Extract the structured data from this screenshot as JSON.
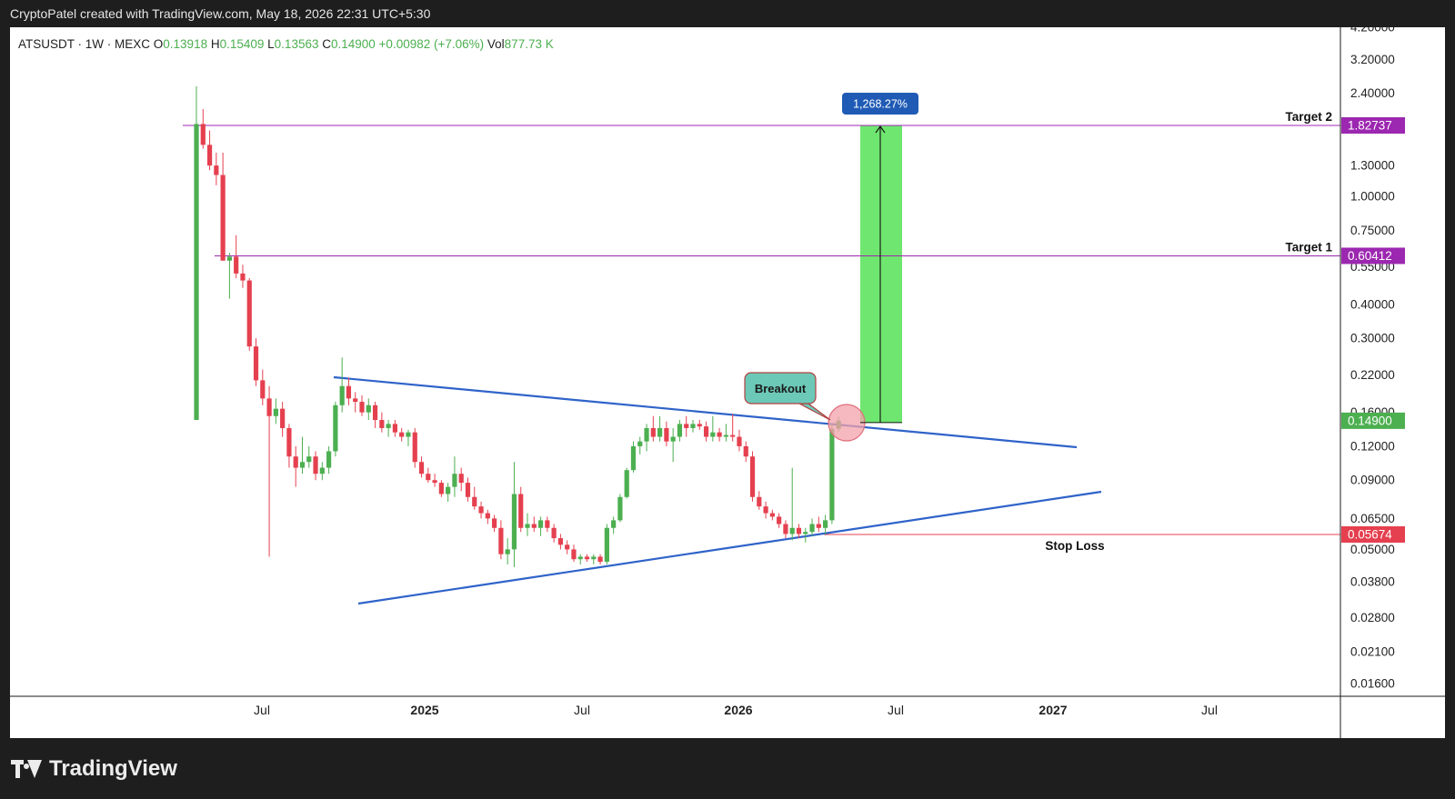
{
  "header": {
    "attribution": "CryptoPatel created with TradingView.com, May 18, 2026 22:31 UTC+5:30"
  },
  "brand": {
    "name": "TradingView"
  },
  "colors": {
    "up": "#4caf50",
    "down": "#e5404f",
    "trendline": "#2f63c9",
    "target_line": "#9c27b0",
    "stop_line": "#e5404f",
    "target_zone": "#5fe35f",
    "percent_badge": "#1f5bb5",
    "breakout_bubble": "#6cc9b7",
    "breakout_circle": "#f3a2ab"
  },
  "chart_data": {
    "type": "candlestick",
    "symbol": "ATSUSDT",
    "timeframe": "1W",
    "exchange": "MEXC",
    "ohlc_legend": {
      "open_label": "O",
      "open": "0.13918",
      "high_label": "H",
      "high": "0.15409",
      "low_label": "L",
      "low": "0.13563",
      "close_label": "C",
      "close": "0.14900",
      "change": "+0.00982 (+7.06%)",
      "volume_label": "Vol",
      "volume": "877.73 K"
    },
    "y_scale": "log",
    "y_ticks": [
      "4.20000",
      "3.20000",
      "2.40000",
      "1.30000",
      "1.00000",
      "0.75000",
      "0.55000",
      "0.40000",
      "0.30000",
      "0.22000",
      "0.16000",
      "0.12000",
      "0.09000",
      "0.06500",
      "0.05000",
      "0.03800",
      "0.02800",
      "0.02100",
      "0.01600"
    ],
    "x_ticks": [
      {
        "label": "Jul",
        "bold": false
      },
      {
        "label": "2025",
        "bold": true
      },
      {
        "label": "Jul",
        "bold": false
      },
      {
        "label": "2026",
        "bold": true
      },
      {
        "label": "Jul",
        "bold": false
      },
      {
        "label": "2027",
        "bold": true
      },
      {
        "label": "Jul",
        "bold": false
      }
    ],
    "price_badges": [
      {
        "label": "1.82737",
        "value": 1.82737,
        "color": "#9c27b0"
      },
      {
        "label": "0.60412",
        "value": 0.60412,
        "color": "#9c27b0"
      },
      {
        "label": "0.14900",
        "value": 0.149,
        "color": "#4caf50"
      },
      {
        "label": "0.05674",
        "value": 0.05674,
        "color": "#e5404f"
      }
    ],
    "levels": [
      {
        "label": "Target 2",
        "value": 1.82737
      },
      {
        "label": "Target 1",
        "value": 0.60412
      },
      {
        "label": "Stop Loss",
        "value": 0.05674
      }
    ],
    "annotations": {
      "breakout": "Breakout",
      "gain_percent": "1,268.27%"
    },
    "candles": [
      {
        "o": 0.15,
        "h": 2.55,
        "l": 0.15,
        "c": 1.85
      },
      {
        "o": 1.85,
        "h": 2.1,
        "l": 1.5,
        "c": 1.55
      },
      {
        "o": 1.55,
        "h": 1.75,
        "l": 1.25,
        "c": 1.3
      },
      {
        "o": 1.3,
        "h": 1.45,
        "l": 1.1,
        "c": 1.2
      },
      {
        "o": 1.2,
        "h": 1.45,
        "l": 0.58,
        "c": 0.58
      },
      {
        "o": 0.58,
        "h": 0.62,
        "l": 0.42,
        "c": 0.6
      },
      {
        "o": 0.6,
        "h": 0.72,
        "l": 0.5,
        "c": 0.52
      },
      {
        "o": 0.52,
        "h": 0.56,
        "l": 0.46,
        "c": 0.49
      },
      {
        "o": 0.49,
        "h": 0.5,
        "l": 0.27,
        "c": 0.28
      },
      {
        "o": 0.28,
        "h": 0.3,
        "l": 0.2,
        "c": 0.21
      },
      {
        "o": 0.21,
        "h": 0.23,
        "l": 0.17,
        "c": 0.18
      },
      {
        "o": 0.18,
        "h": 0.2,
        "l": 0.047,
        "c": 0.155
      },
      {
        "o": 0.155,
        "h": 0.18,
        "l": 0.145,
        "c": 0.165
      },
      {
        "o": 0.165,
        "h": 0.175,
        "l": 0.13,
        "c": 0.14
      },
      {
        "o": 0.14,
        "h": 0.145,
        "l": 0.1,
        "c": 0.11
      },
      {
        "o": 0.11,
        "h": 0.12,
        "l": 0.085,
        "c": 0.1
      },
      {
        "o": 0.1,
        "h": 0.13,
        "l": 0.095,
        "c": 0.105
      },
      {
        "o": 0.105,
        "h": 0.12,
        "l": 0.1,
        "c": 0.11
      },
      {
        "o": 0.11,
        "h": 0.115,
        "l": 0.09,
        "c": 0.095
      },
      {
        "o": 0.095,
        "h": 0.105,
        "l": 0.09,
        "c": 0.1
      },
      {
        "o": 0.1,
        "h": 0.12,
        "l": 0.095,
        "c": 0.115
      },
      {
        "o": 0.115,
        "h": 0.175,
        "l": 0.11,
        "c": 0.17
      },
      {
        "o": 0.17,
        "h": 0.255,
        "l": 0.16,
        "c": 0.2
      },
      {
        "o": 0.2,
        "h": 0.215,
        "l": 0.17,
        "c": 0.18
      },
      {
        "o": 0.18,
        "h": 0.19,
        "l": 0.16,
        "c": 0.175
      },
      {
        "o": 0.175,
        "h": 0.185,
        "l": 0.155,
        "c": 0.16
      },
      {
        "o": 0.16,
        "h": 0.18,
        "l": 0.15,
        "c": 0.17
      },
      {
        "o": 0.17,
        "h": 0.175,
        "l": 0.14,
        "c": 0.15
      },
      {
        "o": 0.15,
        "h": 0.16,
        "l": 0.135,
        "c": 0.14
      },
      {
        "o": 0.14,
        "h": 0.15,
        "l": 0.13,
        "c": 0.145
      },
      {
        "o": 0.145,
        "h": 0.15,
        "l": 0.13,
        "c": 0.135
      },
      {
        "o": 0.135,
        "h": 0.14,
        "l": 0.125,
        "c": 0.13
      },
      {
        "o": 0.13,
        "h": 0.138,
        "l": 0.12,
        "c": 0.135
      },
      {
        "o": 0.135,
        "h": 0.14,
        "l": 0.1,
        "c": 0.105
      },
      {
        "o": 0.105,
        "h": 0.11,
        "l": 0.092,
        "c": 0.095
      },
      {
        "o": 0.095,
        "h": 0.1,
        "l": 0.088,
        "c": 0.09
      },
      {
        "o": 0.09,
        "h": 0.095,
        "l": 0.085,
        "c": 0.088
      },
      {
        "o": 0.088,
        "h": 0.09,
        "l": 0.078,
        "c": 0.08
      },
      {
        "o": 0.08,
        "h": 0.088,
        "l": 0.075,
        "c": 0.085
      },
      {
        "o": 0.085,
        "h": 0.11,
        "l": 0.078,
        "c": 0.095
      },
      {
        "o": 0.095,
        "h": 0.1,
        "l": 0.082,
        "c": 0.088
      },
      {
        "o": 0.088,
        "h": 0.092,
        "l": 0.075,
        "c": 0.078
      },
      {
        "o": 0.078,
        "h": 0.085,
        "l": 0.07,
        "c": 0.072
      },
      {
        "o": 0.072,
        "h": 0.075,
        "l": 0.065,
        "c": 0.068
      },
      {
        "o": 0.068,
        "h": 0.07,
        "l": 0.062,
        "c": 0.065
      },
      {
        "o": 0.065,
        "h": 0.067,
        "l": 0.058,
        "c": 0.06
      },
      {
        "o": 0.06,
        "h": 0.064,
        "l": 0.046,
        "c": 0.048
      },
      {
        "o": 0.048,
        "h": 0.055,
        "l": 0.044,
        "c": 0.05
      },
      {
        "o": 0.05,
        "h": 0.105,
        "l": 0.043,
        "c": 0.08
      },
      {
        "o": 0.08,
        "h": 0.085,
        "l": 0.058,
        "c": 0.06
      },
      {
        "o": 0.06,
        "h": 0.068,
        "l": 0.056,
        "c": 0.062
      },
      {
        "o": 0.062,
        "h": 0.066,
        "l": 0.058,
        "c": 0.06
      },
      {
        "o": 0.06,
        "h": 0.066,
        "l": 0.056,
        "c": 0.064
      },
      {
        "o": 0.064,
        "h": 0.066,
        "l": 0.058,
        "c": 0.06
      },
      {
        "o": 0.06,
        "h": 0.062,
        "l": 0.053,
        "c": 0.055
      },
      {
        "o": 0.055,
        "h": 0.057,
        "l": 0.05,
        "c": 0.052
      },
      {
        "o": 0.052,
        "h": 0.054,
        "l": 0.048,
        "c": 0.05
      },
      {
        "o": 0.05,
        "h": 0.052,
        "l": 0.045,
        "c": 0.046
      },
      {
        "o": 0.046,
        "h": 0.048,
        "l": 0.044,
        "c": 0.047
      },
      {
        "o": 0.047,
        "h": 0.048,
        "l": 0.045,
        "c": 0.046
      },
      {
        "o": 0.046,
        "h": 0.048,
        "l": 0.044,
        "c": 0.047
      },
      {
        "o": 0.047,
        "h": 0.048,
        "l": 0.044,
        "c": 0.045
      },
      {
        "o": 0.045,
        "h": 0.062,
        "l": 0.044,
        "c": 0.06
      },
      {
        "o": 0.06,
        "h": 0.066,
        "l": 0.057,
        "c": 0.064
      },
      {
        "o": 0.064,
        "h": 0.08,
        "l": 0.063,
        "c": 0.078
      },
      {
        "o": 0.078,
        "h": 0.1,
        "l": 0.077,
        "c": 0.098
      },
      {
        "o": 0.098,
        "h": 0.125,
        "l": 0.096,
        "c": 0.12
      },
      {
        "o": 0.12,
        "h": 0.13,
        "l": 0.112,
        "c": 0.125
      },
      {
        "o": 0.125,
        "h": 0.145,
        "l": 0.115,
        "c": 0.14
      },
      {
        "o": 0.14,
        "h": 0.155,
        "l": 0.125,
        "c": 0.13
      },
      {
        "o": 0.13,
        "h": 0.155,
        "l": 0.125,
        "c": 0.14
      },
      {
        "o": 0.14,
        "h": 0.148,
        "l": 0.12,
        "c": 0.125
      },
      {
        "o": 0.125,
        "h": 0.14,
        "l": 0.105,
        "c": 0.13
      },
      {
        "o": 0.13,
        "h": 0.15,
        "l": 0.125,
        "c": 0.145
      },
      {
        "o": 0.145,
        "h": 0.155,
        "l": 0.13,
        "c": 0.14
      },
      {
        "o": 0.14,
        "h": 0.15,
        "l": 0.135,
        "c": 0.145
      },
      {
        "o": 0.145,
        "h": 0.15,
        "l": 0.138,
        "c": 0.142
      },
      {
        "o": 0.142,
        "h": 0.148,
        "l": 0.125,
        "c": 0.13
      },
      {
        "o": 0.13,
        "h": 0.155,
        "l": 0.125,
        "c": 0.135
      },
      {
        "o": 0.135,
        "h": 0.14,
        "l": 0.125,
        "c": 0.13
      },
      {
        "o": 0.13,
        "h": 0.145,
        "l": 0.125,
        "c": 0.132
      },
      {
        "o": 0.132,
        "h": 0.158,
        "l": 0.125,
        "c": 0.13
      },
      {
        "o": 0.13,
        "h": 0.138,
        "l": 0.115,
        "c": 0.12
      },
      {
        "o": 0.12,
        "h": 0.125,
        "l": 0.105,
        "c": 0.11
      },
      {
        "o": 0.11,
        "h": 0.115,
        "l": 0.075,
        "c": 0.078
      },
      {
        "o": 0.078,
        "h": 0.082,
        "l": 0.07,
        "c": 0.072
      },
      {
        "o": 0.072,
        "h": 0.075,
        "l": 0.065,
        "c": 0.068
      },
      {
        "o": 0.068,
        "h": 0.07,
        "l": 0.064,
        "c": 0.066
      },
      {
        "o": 0.066,
        "h": 0.068,
        "l": 0.06,
        "c": 0.062
      },
      {
        "o": 0.062,
        "h": 0.064,
        "l": 0.055,
        "c": 0.057
      },
      {
        "o": 0.057,
        "h": 0.1,
        "l": 0.054,
        "c": 0.06
      },
      {
        "o": 0.06,
        "h": 0.062,
        "l": 0.055,
        "c": 0.057
      },
      {
        "o": 0.057,
        "h": 0.06,
        "l": 0.053,
        "c": 0.058
      },
      {
        "o": 0.058,
        "h": 0.065,
        "l": 0.056,
        "c": 0.062
      },
      {
        "o": 0.062,
        "h": 0.066,
        "l": 0.058,
        "c": 0.06
      },
      {
        "o": 0.06,
        "h": 0.067,
        "l": 0.057,
        "c": 0.064
      },
      {
        "o": 0.064,
        "h": 0.145,
        "l": 0.062,
        "c": 0.139
      },
      {
        "o": 0.13918,
        "h": 0.15409,
        "l": 0.13563,
        "c": 0.149
      }
    ]
  }
}
